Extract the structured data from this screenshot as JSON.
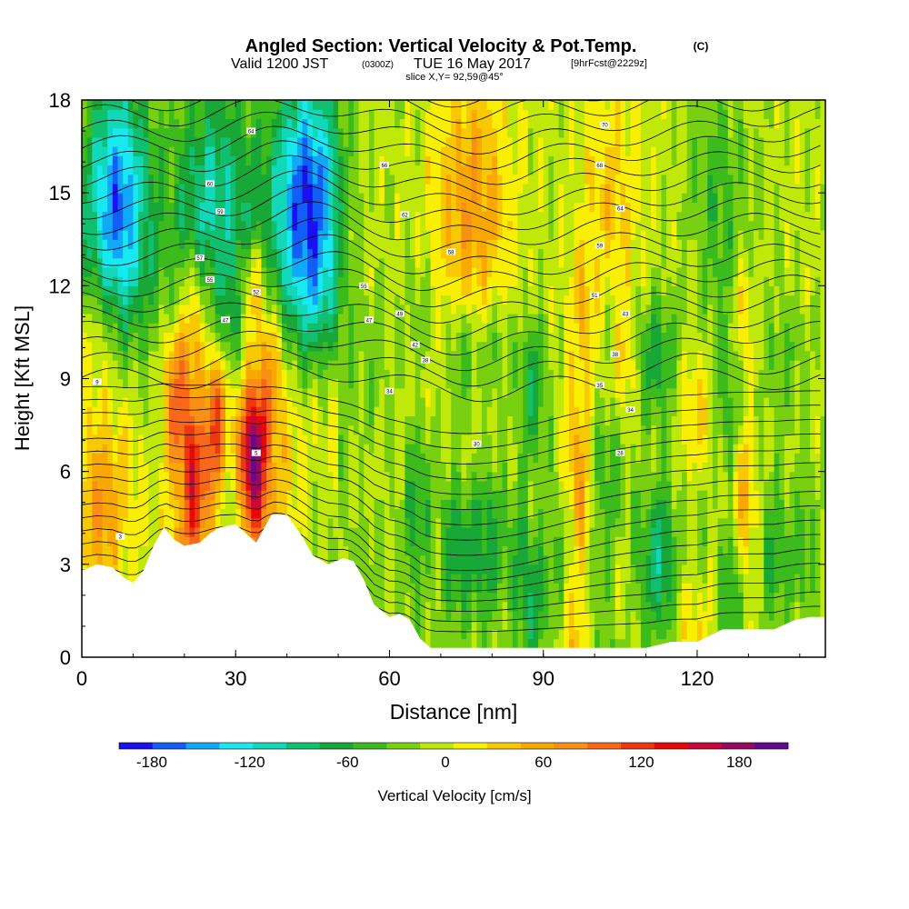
{
  "chart_data": {
    "type": "heatmap",
    "title": "Angled Section: Vertical Velocity & Pot.Temp.",
    "title_unit": "(C)",
    "subtitle": {
      "prefix": "Valid 1200 JST",
      "utc": "(0300Z)",
      "date": "TUE 16 May 2017",
      "forecast": "[9hrFcst@2229z]"
    },
    "slice_label": "slice X,Y= 92,59@45°",
    "xlabel": "Distance [nm]",
    "ylabel": "Height [Kft MSL]",
    "xlim": [
      0,
      145
    ],
    "ylim": [
      0,
      18
    ],
    "x_ticks": [
      "0",
      "30",
      "60",
      "90",
      "120"
    ],
    "x_tick_values": [
      0,
      30,
      60,
      90,
      120
    ],
    "y_ticks": [
      "0",
      "3",
      "6",
      "9",
      "12",
      "15",
      "18"
    ],
    "y_tick_values": [
      0,
      3,
      6,
      9,
      12,
      15,
      18
    ],
    "colorbar": {
      "label": "Vertical Velocity [cm/s]",
      "ticks": [
        "-180",
        "-120",
        "-60",
        "0",
        "60",
        "120",
        "180"
      ],
      "tick_values": [
        -180,
        -120,
        -60,
        0,
        60,
        120,
        180
      ],
      "range": [
        -200,
        210
      ],
      "step": 20,
      "colors": [
        "#1a10f0",
        "#1060f8",
        "#10a8f8",
        "#18e8f0",
        "#10d8b8",
        "#10c070",
        "#18a838",
        "#3cbc1c",
        "#78d010",
        "#c0e808",
        "#f8f000",
        "#f8c800",
        "#f8a800",
        "#f89018",
        "#f86818",
        "#f03810",
        "#e80808",
        "#c80838",
        "#980860",
        "#680890"
      ]
    },
    "terrain": [
      [
        0,
        2.8
      ],
      [
        3,
        3.0
      ],
      [
        6,
        2.9
      ],
      [
        8,
        2.6
      ],
      [
        10,
        2.4
      ],
      [
        12,
        2.8
      ],
      [
        14,
        3.6
      ],
      [
        16,
        4.2
      ],
      [
        18,
        3.8
      ],
      [
        20,
        3.6
      ],
      [
        23,
        3.7
      ],
      [
        25,
        4.0
      ],
      [
        27,
        4.2
      ],
      [
        30,
        4.3
      ],
      [
        32,
        4.0
      ],
      [
        34,
        3.7
      ],
      [
        37,
        4.6
      ],
      [
        40,
        4.6
      ],
      [
        43,
        3.9
      ],
      [
        45,
        3.3
      ],
      [
        48,
        3.0
      ],
      [
        51,
        3.2
      ],
      [
        53,
        3.1
      ],
      [
        55,
        2.5
      ],
      [
        57,
        1.7
      ],
      [
        60,
        1.3
      ],
      [
        62,
        1.4
      ],
      [
        64,
        1.2
      ],
      [
        66,
        0.6
      ],
      [
        68,
        0.3
      ],
      [
        75,
        0.3
      ],
      [
        85,
        0.3
      ],
      [
        90,
        0.3
      ],
      [
        95,
        0.3
      ],
      [
        100,
        0.3
      ],
      [
        105,
        0.3
      ],
      [
        110,
        0.3
      ],
      [
        115,
        0.5
      ],
      [
        120,
        0.5
      ],
      [
        125,
        0.9
      ],
      [
        130,
        0.9
      ],
      [
        135,
        0.9
      ],
      [
        139,
        1.2
      ],
      [
        142,
        1.3
      ],
      [
        145,
        1.3
      ]
    ],
    "columns": [
      {
        "x": 4,
        "w": 2.5,
        "value": 50
      },
      {
        "x": 14,
        "w": 2,
        "value": -40
      },
      {
        "x": 19,
        "w": 2,
        "value": 90
      },
      {
        "x": 22,
        "w": 1.5,
        "value": 110
      },
      {
        "x": 26,
        "w": 1.5,
        "value": 100
      },
      {
        "x": 29,
        "w": 1.5,
        "value": -40
      },
      {
        "x": 33.5,
        "w": 1.8,
        "value": 170
      },
      {
        "x": 37,
        "w": 2,
        "value": 60
      },
      {
        "x": 47,
        "w": 3,
        "value": -30
      },
      {
        "x": 56,
        "w": 3,
        "value": -20
      },
      {
        "x": 66,
        "w": 2,
        "value": -40
      },
      {
        "x": 74,
        "w": 2,
        "value": -50
      },
      {
        "x": 80,
        "w": 3,
        "value": -40
      },
      {
        "x": 88,
        "w": 2,
        "value": -60
      },
      {
        "x": 96,
        "w": 1.5,
        "value": 50
      },
      {
        "x": 98,
        "w": 1.2,
        "value": 60
      },
      {
        "x": 103,
        "w": 2,
        "value": -40
      },
      {
        "x": 106,
        "w": 1.2,
        "value": 40
      },
      {
        "x": 112,
        "w": 3,
        "value": -60
      },
      {
        "x": 120,
        "w": 2.5,
        "value": 40
      },
      {
        "x": 126,
        "w": 2,
        "value": -40
      },
      {
        "x": 129,
        "w": 1.5,
        "value": 70
      },
      {
        "x": 137,
        "w": 3,
        "value": -30
      }
    ],
    "upper_plumes": [
      {
        "x": 7,
        "w": 4,
        "value": -130
      },
      {
        "x": 26,
        "w": 5,
        "value": -70
      },
      {
        "x": 44,
        "w": 4.5,
        "value": -150
      },
      {
        "x": 76,
        "w": 5,
        "value": 70
      },
      {
        "x": 103,
        "w": 4,
        "value": 40
      },
      {
        "x": 124,
        "w": 4,
        "value": -40
      }
    ],
    "contour_levels": 36,
    "contour_labels": [
      {
        "x": 3,
        "y": 8.9,
        "text": "9"
      },
      {
        "x": 7.5,
        "y": 3.9,
        "text": "3"
      },
      {
        "x": 34,
        "y": 6.6,
        "text": "5"
      },
      {
        "x": 77,
        "y": 6.9,
        "text": "30"
      },
      {
        "x": 60,
        "y": 8.6,
        "text": "34"
      },
      {
        "x": 67,
        "y": 9.6,
        "text": "38"
      },
      {
        "x": 65,
        "y": 10.1,
        "text": "42"
      },
      {
        "x": 56,
        "y": 10.9,
        "text": "47"
      },
      {
        "x": 62,
        "y": 11.1,
        "text": "49"
      },
      {
        "x": 28,
        "y": 10.9,
        "text": "47"
      },
      {
        "x": 34,
        "y": 11.8,
        "text": "52"
      },
      {
        "x": 25,
        "y": 12.2,
        "text": "55"
      },
      {
        "x": 23,
        "y": 12.9,
        "text": "57"
      },
      {
        "x": 27,
        "y": 14.4,
        "text": "59"
      },
      {
        "x": 25,
        "y": 15.3,
        "text": "60"
      },
      {
        "x": 33,
        "y": 17.0,
        "text": "64"
      },
      {
        "x": 59,
        "y": 15.9,
        "text": "66"
      },
      {
        "x": 63,
        "y": 14.3,
        "text": "62"
      },
      {
        "x": 72,
        "y": 13.1,
        "text": "58"
      },
      {
        "x": 55,
        "y": 12.0,
        "text": "55"
      },
      {
        "x": 102,
        "y": 17.2,
        "text": "70"
      },
      {
        "x": 101,
        "y": 15.9,
        "text": "68"
      },
      {
        "x": 105,
        "y": 14.5,
        "text": "64"
      },
      {
        "x": 101,
        "y": 13.3,
        "text": "59"
      },
      {
        "x": 100,
        "y": 11.7,
        "text": "51"
      },
      {
        "x": 106,
        "y": 11.1,
        "text": "43"
      },
      {
        "x": 104,
        "y": 9.8,
        "text": "38"
      },
      {
        "x": 101,
        "y": 8.8,
        "text": "35"
      },
      {
        "x": 107,
        "y": 8.0,
        "text": "34"
      },
      {
        "x": 105,
        "y": 6.6,
        "text": "28"
      }
    ]
  }
}
